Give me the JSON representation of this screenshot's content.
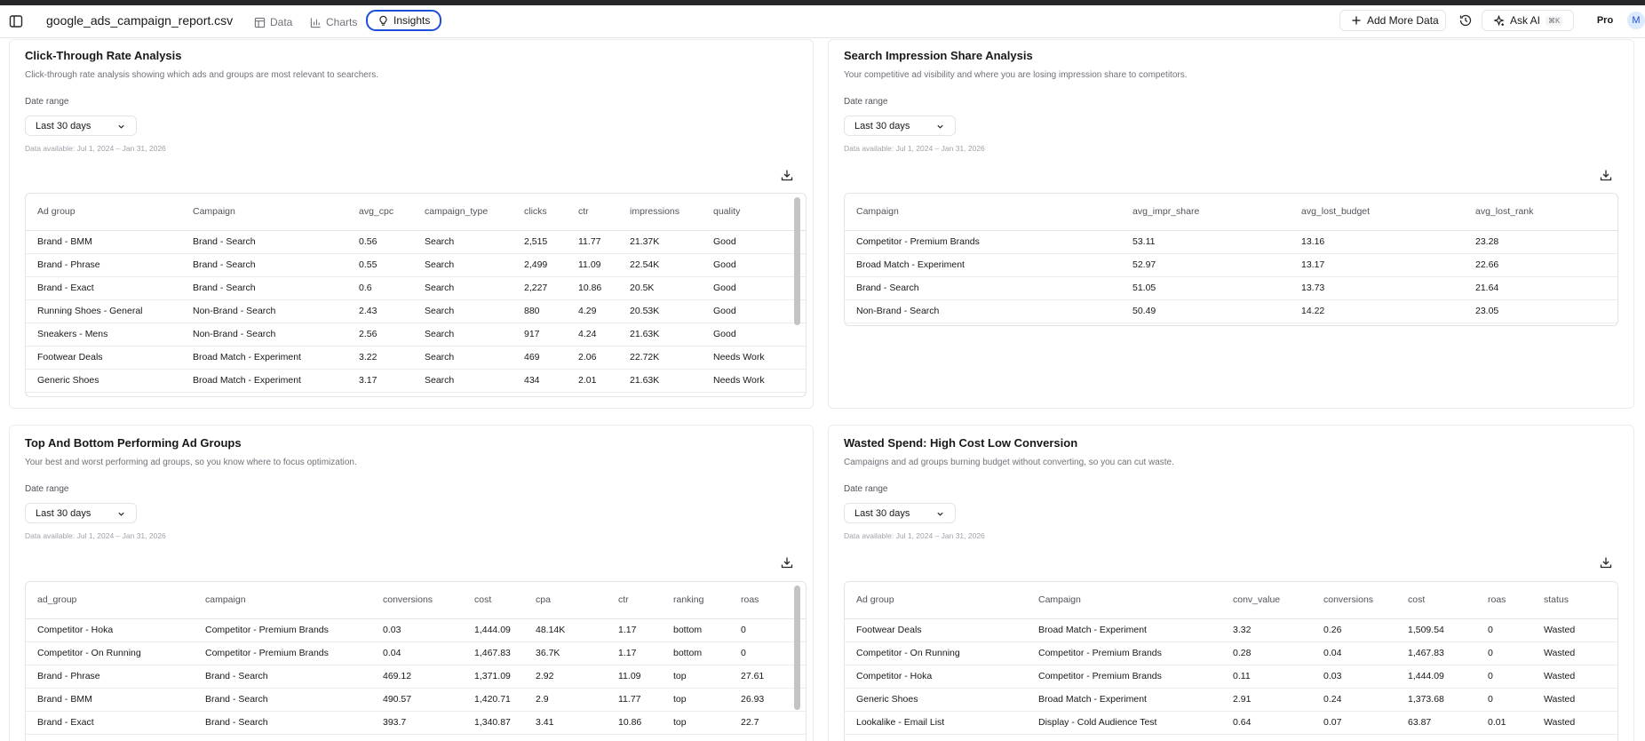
{
  "header": {
    "filename": "google_ads_campaign_report.csv",
    "tabs": [
      {
        "label": "Data",
        "icon": "table-icon"
      },
      {
        "label": "Charts",
        "icon": "bar-chart-icon"
      },
      {
        "label": "Insights",
        "icon": "lightbulb-icon"
      }
    ],
    "add_more_data": "Add More Data",
    "ask_ai": "Ask AI",
    "ask_ai_shortcut": "⌘K",
    "plan": "Pro",
    "avatar_initial": "M"
  },
  "colors": {
    "accent": "#1d4ed8",
    "border": "#e4e4e7",
    "muted": "#71717a"
  },
  "cards": {
    "ctr": {
      "title": "Click-Through Rate Analysis",
      "description": "Click-through rate analysis showing which ads and groups are most relevant to searchers.",
      "date_label": "Date range",
      "date_value": "Last 30 days",
      "available": "Data available: Jul 1, 2024 – Jan 31, 2026",
      "columns": [
        "Ad group",
        "Campaign",
        "avg_cpc",
        "campaign_type",
        "clicks",
        "ctr",
        "impressions",
        "quality"
      ],
      "rows": [
        [
          "Brand - BMM",
          "Brand - Search",
          "0.56",
          "Search",
          "2,515",
          "11.77",
          "21.37K",
          "Good"
        ],
        [
          "Brand - Phrase",
          "Brand - Search",
          "0.55",
          "Search",
          "2,499",
          "11.09",
          "22.54K",
          "Good"
        ],
        [
          "Brand - Exact",
          "Brand - Search",
          "0.6",
          "Search",
          "2,227",
          "10.86",
          "20.5K",
          "Good"
        ],
        [
          "Running Shoes - General",
          "Non-Brand - Search",
          "2.43",
          "Search",
          "880",
          "4.29",
          "20.53K",
          "Good"
        ],
        [
          "Sneakers - Mens",
          "Non-Brand - Search",
          "2.56",
          "Search",
          "917",
          "4.24",
          "21.63K",
          "Good"
        ],
        [
          "Footwear Deals",
          "Broad Match - Experiment",
          "3.22",
          "Search",
          "469",
          "2.06",
          "22.72K",
          "Needs Work"
        ],
        [
          "Generic Shoes",
          "Broad Match - Experiment",
          "3.17",
          "Search",
          "434",
          "2.01",
          "21.63K",
          "Needs Work"
        ]
      ]
    },
    "impression": {
      "title": "Search Impression Share Analysis",
      "description": "Your competitive ad visibility and where you are losing impression share to competitors.",
      "date_label": "Date range",
      "date_value": "Last 30 days",
      "available": "Data available: Jul 1, 2024 – Jan 31, 2026",
      "columns": [
        "Campaign",
        "avg_impr_share",
        "avg_lost_budget",
        "avg_lost_rank"
      ],
      "rows": [
        [
          "Competitor - Premium Brands",
          "53.11",
          "13.16",
          "23.28"
        ],
        [
          "Broad Match - Experiment",
          "52.97",
          "13.17",
          "22.66"
        ],
        [
          "Brand - Search",
          "51.05",
          "13.73",
          "21.64"
        ],
        [
          "Non-Brand - Search",
          "50.49",
          "14.22",
          "23.05"
        ]
      ]
    },
    "performing": {
      "title": "Top And Bottom Performing Ad Groups",
      "description": "Your best and worst performing ad groups, so you know where to focus optimization.",
      "date_label": "Date range",
      "date_value": "Last 30 days",
      "available": "Data available: Jul 1, 2024 – Jan 31, 2026",
      "columns": [
        "ad_group",
        "campaign",
        "conversions",
        "cost",
        "cpa",
        "ctr",
        "ranking",
        "roas"
      ],
      "rows": [
        [
          "Competitor - Hoka",
          "Competitor - Premium Brands",
          "0.03",
          "1,444.09",
          "48.14K",
          "1.17",
          "bottom",
          "0"
        ],
        [
          "Competitor - On Running",
          "Competitor - Premium Brands",
          "0.04",
          "1,467.83",
          "36.7K",
          "1.17",
          "bottom",
          "0"
        ],
        [
          "Brand - Phrase",
          "Brand - Search",
          "469.12",
          "1,371.09",
          "2.92",
          "11.09",
          "top",
          "27.61"
        ],
        [
          "Brand - BMM",
          "Brand - Search",
          "490.57",
          "1,420.71",
          "2.9",
          "11.77",
          "top",
          "26.93"
        ],
        [
          "Brand - Exact",
          "Brand - Search",
          "393.7",
          "1,340.87",
          "3.41",
          "10.86",
          "top",
          "22.7"
        ]
      ]
    },
    "wasted": {
      "title": "Wasted Spend: High Cost Low Conversion",
      "description": "Campaigns and ad groups burning budget without converting, so you can cut waste.",
      "date_label": "Date range",
      "date_value": "Last 30 days",
      "available": "Data available: Jul 1, 2024 – Jan 31, 2026",
      "columns": [
        "Ad group",
        "Campaign",
        "conv_value",
        "conversions",
        "cost",
        "roas",
        "status"
      ],
      "rows": [
        [
          "Footwear Deals",
          "Broad Match - Experiment",
          "3.32",
          "0.26",
          "1,509.54",
          "0",
          "Wasted"
        ],
        [
          "Competitor - On Running",
          "Competitor - Premium Brands",
          "0.28",
          "0.04",
          "1,467.83",
          "0",
          "Wasted"
        ],
        [
          "Competitor - Hoka",
          "Competitor - Premium Brands",
          "0.11",
          "0.03",
          "1,444.09",
          "0",
          "Wasted"
        ],
        [
          "Generic Shoes",
          "Broad Match - Experiment",
          "2.91",
          "0.24",
          "1,373.68",
          "0",
          "Wasted"
        ],
        [
          "Lookalike - Email List",
          "Display - Cold Audience Test",
          "0.64",
          "0.07",
          "63.87",
          "0.01",
          "Wasted"
        ]
      ]
    }
  }
}
